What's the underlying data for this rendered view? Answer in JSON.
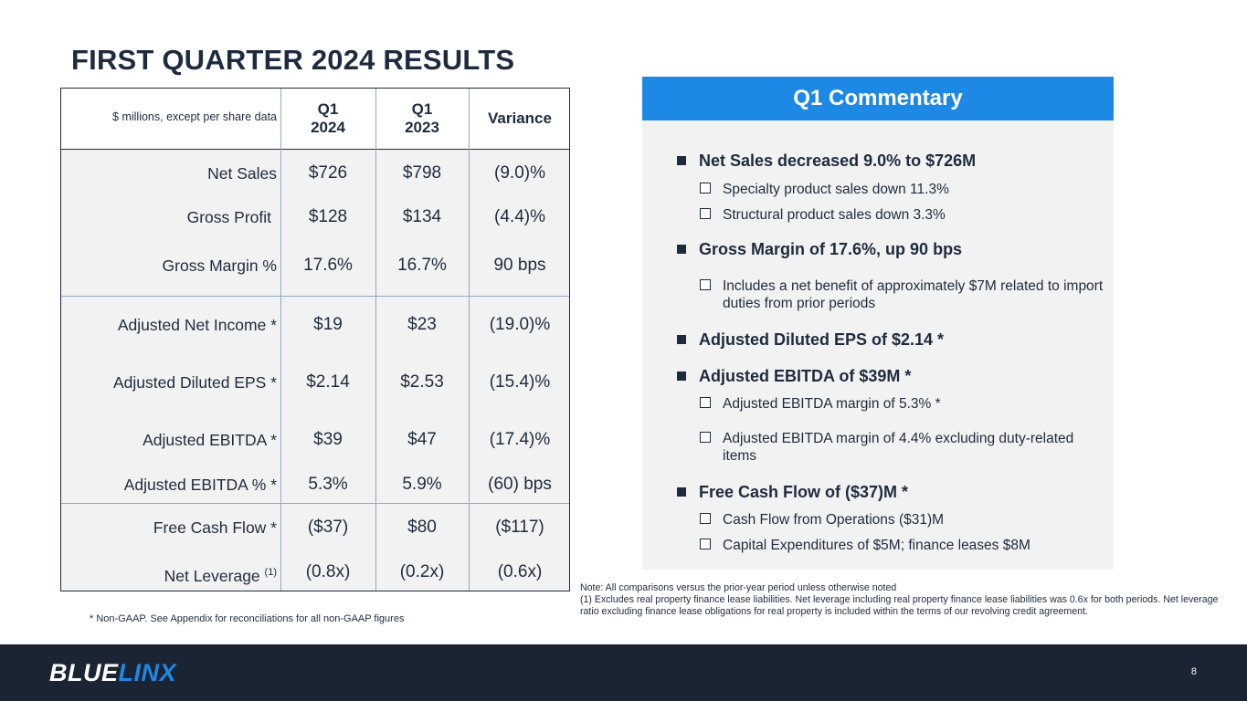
{
  "title": "FIRST QUARTER 2024 RESULTS",
  "table": {
    "unit_note": "$ millions, except per share data",
    "columns": [
      {
        "line1": "Q1",
        "line2": "2024"
      },
      {
        "line1": "Q1",
        "line2": "2023"
      },
      {
        "line1": "Variance",
        "line2": ""
      }
    ],
    "rows": [
      {
        "label": "Net Sales",
        "q1_2024": "$726",
        "q1_2023": "$798",
        "variance": "(9.0)%"
      },
      {
        "label": "Gross Profit",
        "q1_2024": "$128",
        "q1_2023": "$134",
        "variance": "(4.4)%"
      },
      {
        "label": "Gross Margin %",
        "q1_2024": "17.6%",
        "q1_2023": "16.7%",
        "variance": "90 bps"
      },
      {
        "label": "Adjusted Net Income *",
        "q1_2024": "$19",
        "q1_2023": "$23",
        "variance": "(19.0)%"
      },
      {
        "label": "Adjusted Diluted EPS *",
        "q1_2024": "$2.14",
        "q1_2023": "$2.53",
        "variance": "(15.4)%"
      },
      {
        "label": "Adjusted EBITDA *",
        "q1_2024": "$39",
        "q1_2023": "$47",
        "variance": "(17.4)%"
      },
      {
        "label": "Adjusted EBITDA % *",
        "q1_2024": "5.3%",
        "q1_2023": "5.9%",
        "variance": "(60) bps"
      },
      {
        "label": "Free Cash Flow *",
        "q1_2024": "($37)",
        "q1_2023": "$80",
        "variance": "($117)"
      },
      {
        "label": "Net Leverage",
        "label_sup": "(1)",
        "q1_2024": "(0.8x)",
        "q1_2023": "(0.2x)",
        "variance": "(0.6x)"
      }
    ],
    "non_gaap_note": "* Non-GAAP. See Appendix for reconciliations for all non-GAAP figures"
  },
  "commentary": {
    "heading": "Q1 Commentary",
    "items": [
      {
        "level": 1,
        "text": "Net Sales decreased 9.0% to $726M"
      },
      {
        "level": 2,
        "text": "Specialty product sales down 11.3%"
      },
      {
        "level": 2,
        "text": "Structural product sales down 3.3%"
      },
      {
        "level": 1,
        "text": "Gross Margin of 17.6%, up 90 bps"
      },
      {
        "level": 2,
        "text": "Includes a net benefit of approximately $7M related to import duties from prior periods"
      },
      {
        "level": 1,
        "text": "Adjusted Diluted EPS of $2.14 *"
      },
      {
        "level": 1,
        "text": "Adjusted EBITDA of $39M *"
      },
      {
        "level": 2,
        "text": "Adjusted EBITDA margin of 5.3% *"
      },
      {
        "level": 2,
        "text": "Adjusted EBITDA margin of 4.4% excluding duty-related items"
      },
      {
        "level": 1,
        "text": "Free Cash Flow of ($37)M *"
      },
      {
        "level": 2,
        "text": "Cash Flow from Operations ($31)M"
      },
      {
        "level": 2,
        "text": "Capital Expenditures of $5M; finance leases $8M"
      }
    ]
  },
  "notes": {
    "line1": "Note:  All comparisons versus the prior-year period unless otherwise noted",
    "line2": "(1) Excludes real property finance lease liabilities. Net leverage including real property finance lease liabilities was 0.6x for both periods.  Net leverage ratio excluding finance lease obligations for real property is included within the terms of our revolving credit agreement."
  },
  "footer": {
    "logo_part1": "BLUE",
    "logo_part2": "LINX",
    "page_number": "8"
  },
  "colors": {
    "navy": "#1e2b3e",
    "accent_blue": "#1e88e5",
    "footer_bg": "#1b2433",
    "panel_gray": "#f2f2f2"
  }
}
